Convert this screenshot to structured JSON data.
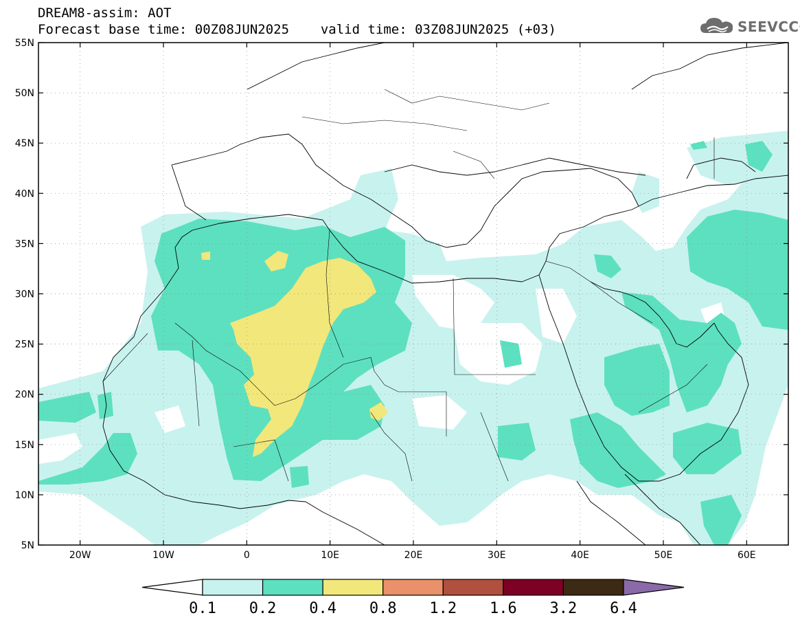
{
  "title": {
    "line1": "DREAM8-assim: AOT",
    "base_time": "Forecast base time: 00Z08JUN2025",
    "valid_time": "valid time: 03Z08JUN2025 (+03)"
  },
  "logo": {
    "text": "SEEVCCC",
    "icon": "cloud-logo-icon"
  },
  "axes": {
    "lat_labels": [
      "55N",
      "50N",
      "45N",
      "40N",
      "35N",
      "30N",
      "25N",
      "20N",
      "15N",
      "10N",
      "5N"
    ],
    "lat_values": [
      55,
      50,
      45,
      40,
      35,
      30,
      25,
      20,
      15,
      10,
      5
    ],
    "lon_labels": [
      "20W",
      "10W",
      "0",
      "10E",
      "20E",
      "30E",
      "40E",
      "50E",
      "60E"
    ],
    "lon_values": [
      -20,
      -10,
      0,
      10,
      20,
      30,
      40,
      50,
      60
    ],
    "lon_range": [
      -25,
      65
    ],
    "lat_range": [
      5,
      55
    ]
  },
  "colorbar": {
    "levels": [
      "0.1",
      "0.2",
      "0.4",
      "0.8",
      "1.2",
      "1.6",
      "3.2",
      "6.4"
    ],
    "colors": [
      "#ffffff",
      "#c8f2ee",
      "#5de0bf",
      "#f2e77a",
      "#e8916a",
      "#b0503e",
      "#7d0025",
      "#3d2a14",
      "#8a6aa8"
    ]
  }
}
